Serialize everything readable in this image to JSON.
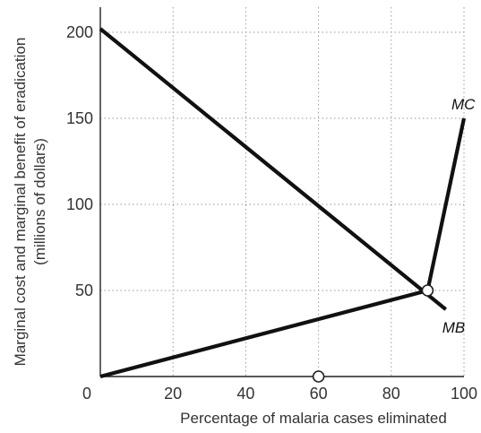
{
  "chart_data": {
    "type": "line",
    "title": "",
    "xlabel": "Percentage of malaria cases eliminated",
    "ylabel_line1": "Marginal cost and marginal benefit of eradication",
    "ylabel_line2": "(millions of dollars)",
    "xlim": [
      0,
      100
    ],
    "ylim": [
      0,
      200
    ],
    "x_ticks": [
      0,
      20,
      40,
      60,
      80,
      100
    ],
    "y_ticks": [
      50,
      100,
      150,
      200
    ],
    "grid": true,
    "series": [
      {
        "name": "MB",
        "x": [
          0,
          95
        ],
        "y": [
          202,
          39
        ]
      },
      {
        "name": "MC",
        "x": [
          0,
          90,
          100
        ],
        "y": [
          0,
          50,
          150
        ]
      }
    ],
    "markers": [
      {
        "x": 90,
        "y": 50
      },
      {
        "x": 60,
        "y": 0
      }
    ]
  }
}
